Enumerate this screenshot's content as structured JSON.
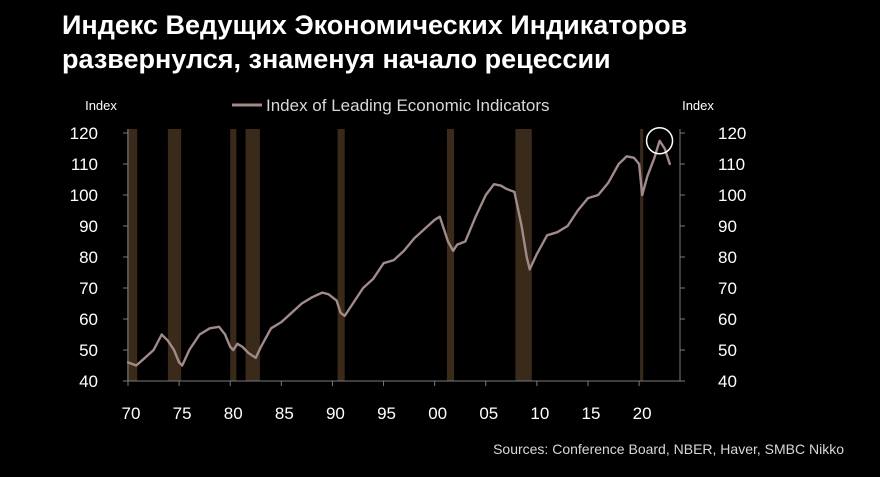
{
  "title_lines": [
    "Индекс Ведущих Экономических Индикаторов",
    "развернулся, знаменуя начало рецессии"
  ],
  "source": "Sources: Conference Board, NBER, Haver, SMBC Nikko",
  "colors": {
    "background": "#000000",
    "line": "#a08a8a",
    "recession": "#3a2a1a",
    "axis": "#7a7a7a",
    "text": "#ffffff",
    "highlight_circle": "#ffffff"
  },
  "chart_data": {
    "type": "line",
    "title": "",
    "legend": "top-left",
    "ylabel_left": "Index",
    "ylabel_right": "Index",
    "xlim": [
      1970,
      2024
    ],
    "ylim": [
      40,
      120
    ],
    "x_ticks": [
      1970,
      1975,
      1980,
      1985,
      1990,
      1995,
      2000,
      2005,
      2010,
      2015,
      2020
    ],
    "x_tick_labels": [
      "70",
      "75",
      "80",
      "85",
      "90",
      "95",
      "00",
      "05",
      "10",
      "15",
      "20"
    ],
    "y_ticks": [
      40,
      50,
      60,
      70,
      80,
      90,
      100,
      110,
      120
    ],
    "y_tick_labels": [
      "40",
      "50",
      "60",
      "70",
      "80",
      "90",
      "100",
      "110",
      "120"
    ],
    "recessions": [
      [
        1969.9,
        1970.9
      ],
      [
        1973.9,
        1975.2
      ],
      [
        1980.0,
        1980.6
      ],
      [
        1981.5,
        1982.9
      ],
      [
        1990.5,
        1991.2
      ],
      [
        2001.2,
        2001.9
      ],
      [
        2007.9,
        2009.5
      ],
      [
        2020.1,
        2020.4
      ]
    ],
    "highlight": {
      "x": 2022.0,
      "y": 117.5
    },
    "series": [
      {
        "name": "Index of Leading Economic Indicators",
        "x": [
          1970.0,
          1970.8,
          1971.5,
          1972.5,
          1973.3,
          1973.9,
          1974.5,
          1975.0,
          1975.3,
          1976.0,
          1977.0,
          1978.0,
          1978.9,
          1979.5,
          1980.0,
          1980.3,
          1980.7,
          1981.2,
          1981.8,
          1982.5,
          1983.0,
          1984.0,
          1985.0,
          1986.0,
          1987.0,
          1988.0,
          1989.0,
          1989.6,
          1990.4,
          1990.8,
          1991.2,
          1992.0,
          1993.0,
          1994.0,
          1995.0,
          1996.0,
          1997.0,
          1998.0,
          1999.0,
          2000.0,
          2000.5,
          2001.3,
          2001.8,
          2002.2,
          2003.0,
          2004.0,
          2005.0,
          2005.8,
          2006.5,
          2007.0,
          2007.8,
          2008.5,
          2009.0,
          2009.3,
          2010.0,
          2011.0,
          2012.0,
          2013.0,
          2014.0,
          2015.0,
          2016.0,
          2017.0,
          2018.0,
          2018.8,
          2019.5,
          2020.0,
          2020.3,
          2020.8,
          2021.5,
          2022.0,
          2022.5,
          2023.0
        ],
        "values": [
          46,
          45,
          47,
          50,
          55,
          53,
          50,
          46,
          45,
          50,
          55,
          57,
          57.5,
          55,
          51,
          50,
          52,
          51,
          49,
          47.5,
          51,
          57,
          59,
          62,
          65,
          67,
          68.5,
          68,
          66,
          62,
          61,
          65,
          70,
          73,
          78,
          79,
          82,
          86,
          89,
          92,
          93,
          85,
          82,
          84,
          85,
          93,
          100,
          103.5,
          103,
          102,
          101,
          90,
          80,
          76,
          81,
          87,
          88,
          90,
          95,
          99,
          100,
          104,
          110,
          112.5,
          112,
          110,
          100,
          106,
          112,
          117.5,
          115,
          110
        ]
      }
    ]
  }
}
